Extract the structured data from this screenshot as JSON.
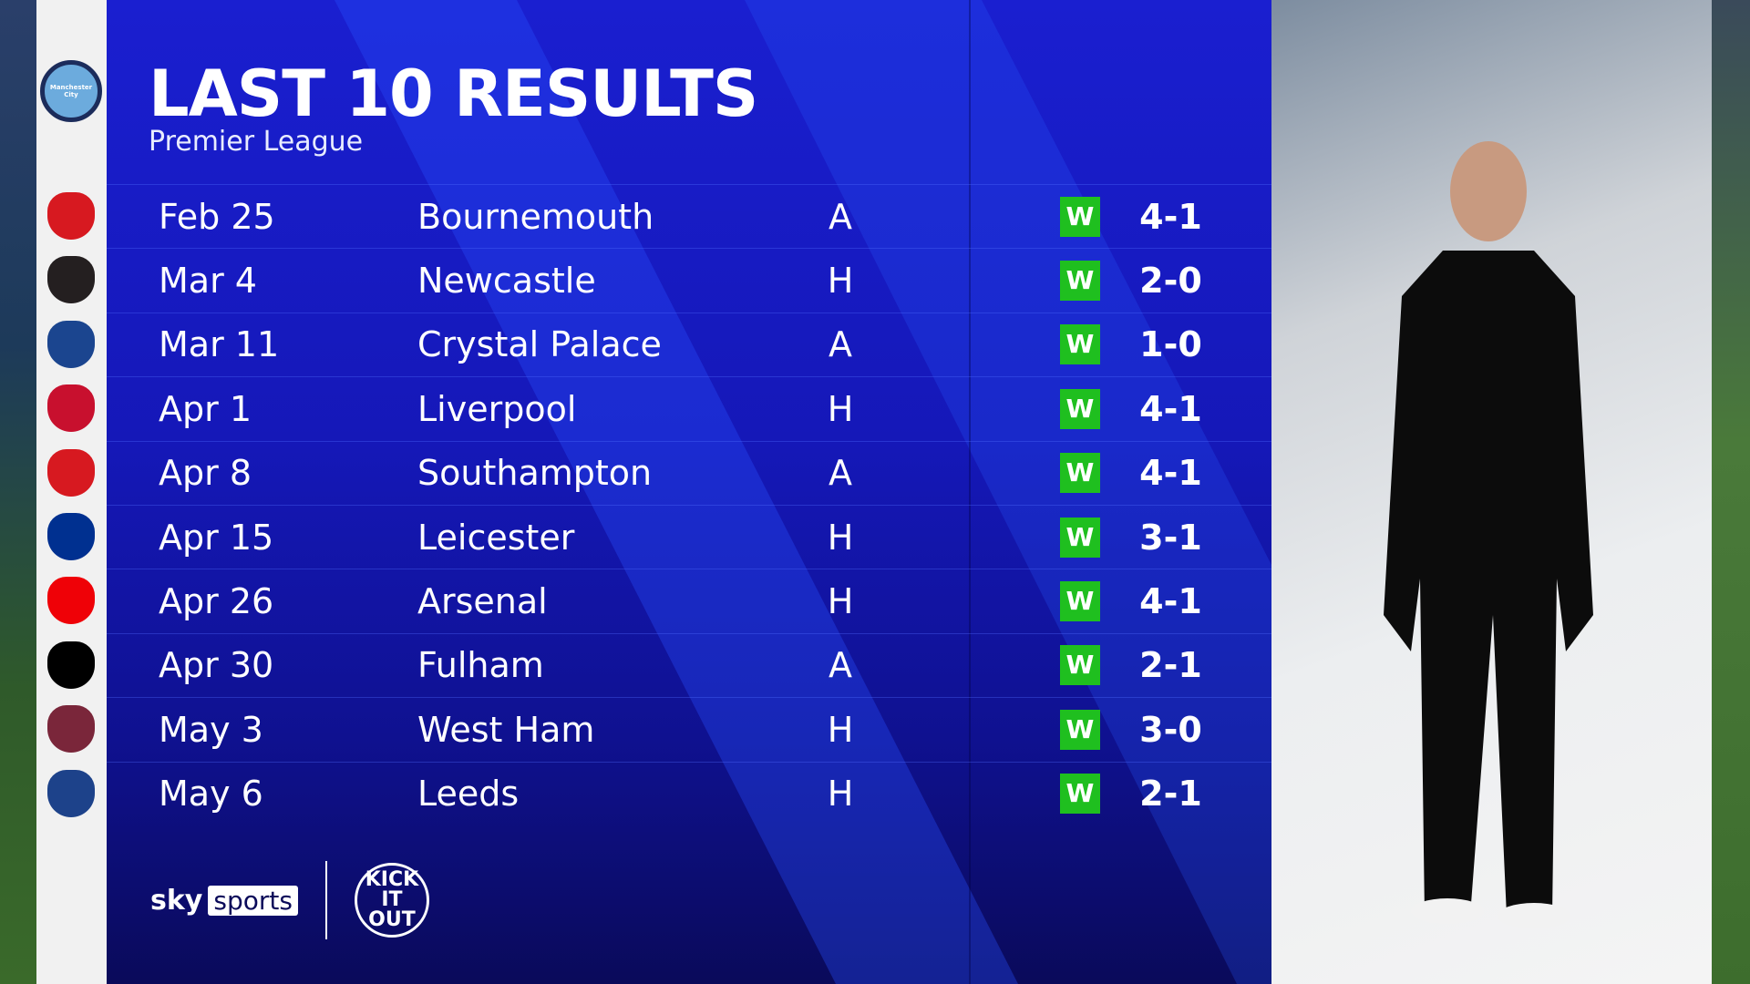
{
  "header": {
    "title": "LAST 10 RESULTS",
    "subtitle": "Premier League",
    "team": "Manchester City"
  },
  "colors": {
    "panel": "#1518b8",
    "win": "#1fbf1f"
  },
  "results": [
    {
      "date": "Feb 25",
      "opponent": "Bournemouth",
      "venue": "A",
      "result": "W",
      "score": "4-1",
      "crest_color": "#d71920"
    },
    {
      "date": "Mar 4",
      "opponent": "Newcastle",
      "venue": "H",
      "result": "W",
      "score": "2-0",
      "crest_color": "#241f20"
    },
    {
      "date": "Mar 11",
      "opponent": "Crystal Palace",
      "venue": "A",
      "result": "W",
      "score": "1-0",
      "crest_color": "#1b458f"
    },
    {
      "date": "Apr 1",
      "opponent": "Liverpool",
      "venue": "H",
      "result": "W",
      "score": "4-1",
      "crest_color": "#c8102e"
    },
    {
      "date": "Apr 8",
      "opponent": "Southampton",
      "venue": "A",
      "result": "W",
      "score": "4-1",
      "crest_color": "#d71920"
    },
    {
      "date": "Apr 15",
      "opponent": "Leicester",
      "venue": "H",
      "result": "W",
      "score": "3-1",
      "crest_color": "#003090"
    },
    {
      "date": "Apr 26",
      "opponent": "Arsenal",
      "venue": "H",
      "result": "W",
      "score": "4-1",
      "crest_color": "#ef0107"
    },
    {
      "date": "Apr 30",
      "opponent": "Fulham",
      "venue": "A",
      "result": "W",
      "score": "2-1",
      "crest_color": "#000000"
    },
    {
      "date": "May 3",
      "opponent": "West Ham",
      "venue": "H",
      "result": "W",
      "score": "3-0",
      "crest_color": "#7a263a"
    },
    {
      "date": "May 6",
      "opponent": "Leeds",
      "venue": "H",
      "result": "W",
      "score": "2-1",
      "crest_color": "#1d428a"
    }
  ],
  "footer": {
    "sky": "sky",
    "sports": "sports",
    "kick_it_out": "KICK IT OUT"
  }
}
